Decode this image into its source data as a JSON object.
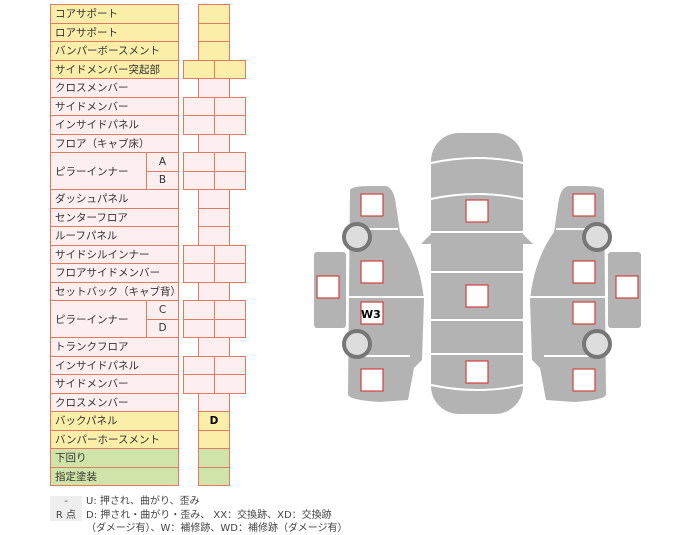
{
  "rows": [
    {
      "label": "コアサポート",
      "color": "yellow",
      "boxes": 1
    },
    {
      "label": "ロアサポート",
      "color": "yellow",
      "boxes": 1
    },
    {
      "label": "バンパーボースメント",
      "color": "yellow",
      "boxes": 1
    },
    {
      "label": "サイドメンバー突起部",
      "color": "yellow",
      "boxes": 2
    },
    {
      "label": "クロスメンバー",
      "color": "pink",
      "boxes": 1
    },
    {
      "label": "サイドメンバー",
      "color": "pink",
      "boxes": 2
    },
    {
      "label": "インサイドパネル",
      "color": "pink",
      "boxes": 2
    },
    {
      "label": "フロア（キャブ床）",
      "color": "pink",
      "boxes": 1
    },
    {
      "label": "ピラーインナー",
      "sub": "A",
      "color": "pink",
      "boxes": 2,
      "span": 2
    },
    {
      "label": "",
      "sub": "B",
      "color": "pink",
      "boxes": 2,
      "cont": true
    },
    {
      "label": "ダッシュパネル",
      "color": "pink",
      "boxes": 1
    },
    {
      "label": "センターフロア",
      "color": "pink",
      "boxes": 1
    },
    {
      "label": "ルーフパネル",
      "color": "pink",
      "boxes": 1
    },
    {
      "label": "サイドシルインナー",
      "color": "pink",
      "boxes": 2
    },
    {
      "label": "フロアサイドメンバー",
      "color": "pink",
      "boxes": 2
    },
    {
      "label": "セットバック（キャブ背）",
      "color": "pink",
      "boxes": 1
    },
    {
      "label": "ピラーインナー",
      "sub": "C",
      "color": "pink",
      "boxes": 2,
      "span": 2
    },
    {
      "label": "",
      "sub": "D",
      "color": "pink",
      "boxes": 2,
      "cont": true
    },
    {
      "label": "トランクフロア",
      "color": "pink",
      "boxes": 1
    },
    {
      "label": "インサイドパネル",
      "color": "pink",
      "boxes": 2
    },
    {
      "label": "サイドメンバー",
      "color": "pink",
      "boxes": 2
    },
    {
      "label": "クロスメンバー",
      "color": "pink",
      "boxes": 1
    },
    {
      "label": "バックパネル",
      "color": "yellow",
      "boxes": 1,
      "value": "D"
    },
    {
      "label": "バンパーホースメント",
      "color": "yellow",
      "boxes": 1
    },
    {
      "label": "下回り",
      "color": "green",
      "boxes": 1
    },
    {
      "label": "指定塗装",
      "color": "green",
      "boxes": 1
    }
  ],
  "legend": {
    "key1": "-",
    "text1": "U: 押され、曲がり、歪み",
    "key2": "R 点",
    "text2": "D: 押され・曲がり・歪み、 XX：交換跡、XD：交換跡",
    "text3": "（ダメージ有）、W：補修跡、WD：補修跡（ダメージ有）"
  },
  "diagram": {
    "mark_label": "W3",
    "body_color": "#b3b3b3",
    "box_border": "#d04040"
  }
}
